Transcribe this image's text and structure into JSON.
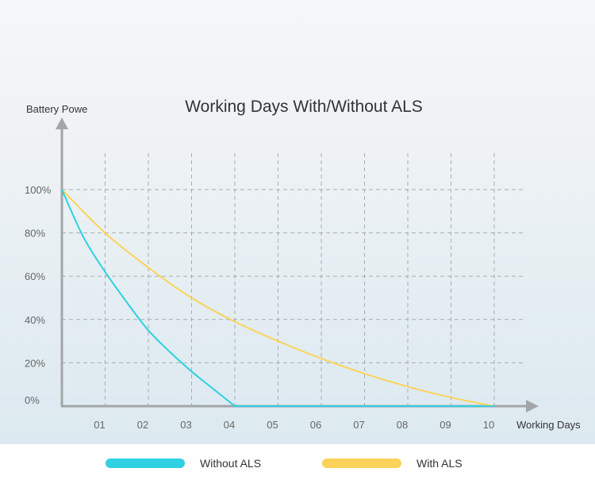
{
  "chart_data": {
    "type": "line",
    "title": "Working Days With/Without ALS",
    "xlabel": "Working Days",
    "ylabel": "Battery Powe",
    "x_ticks": [
      "01",
      "02",
      "03",
      "04",
      "05",
      "06",
      "07",
      "08",
      "09",
      "10"
    ],
    "y_ticks": [
      "0%",
      "20%",
      "40%",
      "60%",
      "80%",
      "100%"
    ],
    "ylim": [
      0,
      100
    ],
    "xlim": [
      0,
      10
    ],
    "grid": true,
    "legend_position": "bottom",
    "series": [
      {
        "name": "Without ALS",
        "color": "#2ed0e2",
        "x": [
          0,
          0.5,
          1,
          1.5,
          2,
          2.5,
          3,
          3.5,
          4,
          10
        ],
        "y": [
          100,
          78,
          62,
          48,
          35,
          25,
          16,
          8,
          0,
          0
        ]
      },
      {
        "name": "With ALS",
        "color": "#fbd35a",
        "x": [
          0,
          1,
          2,
          3,
          4,
          5,
          6,
          7,
          8,
          9,
          10
        ],
        "y": [
          100,
          80,
          64,
          50,
          39,
          30,
          22,
          15,
          9,
          4,
          0
        ]
      }
    ]
  }
}
